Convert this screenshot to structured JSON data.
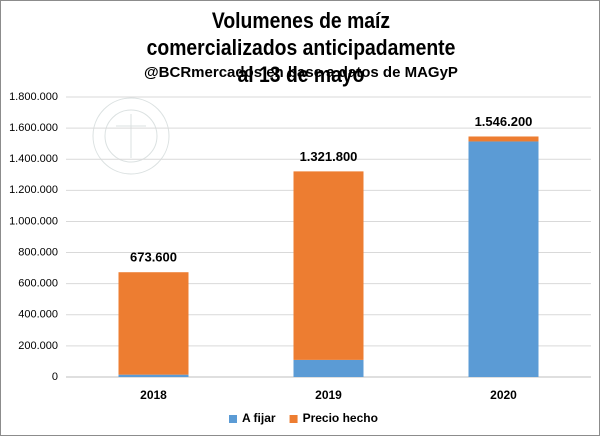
{
  "chart_data": {
    "type": "stacked_bar",
    "title": "Volumenes de maíz comercializados anticipadamente al 13 de mayo",
    "subtitle": "@BCRmercados en base a datos de MAGyP",
    "categories": [
      "2018",
      "2019",
      "2020"
    ],
    "series": [
      {
        "name": "A fijar",
        "color": "#5b9bd5",
        "values": [
          15000,
          110000,
          1514200
        ]
      },
      {
        "name": "Precio hecho",
        "color": "#ed7d31",
        "values": [
          658600,
          1211800,
          32000
        ]
      }
    ],
    "totals": {
      "values": [
        673600,
        1321800,
        1546200
      ],
      "value_labels": [
        "673.600",
        "1.321.800",
        "1.546.200"
      ]
    },
    "ylim": [
      0,
      1800000
    ],
    "yticks": [
      0,
      {
        "value": 200000,
        "label": "200.000"
      },
      {
        "value": 400000,
        "label": "400.000"
      },
      {
        "value": 600000,
        "label": "600.000"
      },
      {
        "value": 800000,
        "label": "800.000"
      },
      {
        "value": 1000000,
        "label": "1.000.000"
      },
      {
        "value": 1200000,
        "label": "1.200.000"
      },
      {
        "value": 1400000,
        "label": "1.400.000"
      },
      {
        "value": 1600000,
        "label": "1.600.000"
      },
      {
        "value": 1800000,
        "label": "1.800.000"
      }
    ],
    "grid": true,
    "legend": "bottom"
  }
}
